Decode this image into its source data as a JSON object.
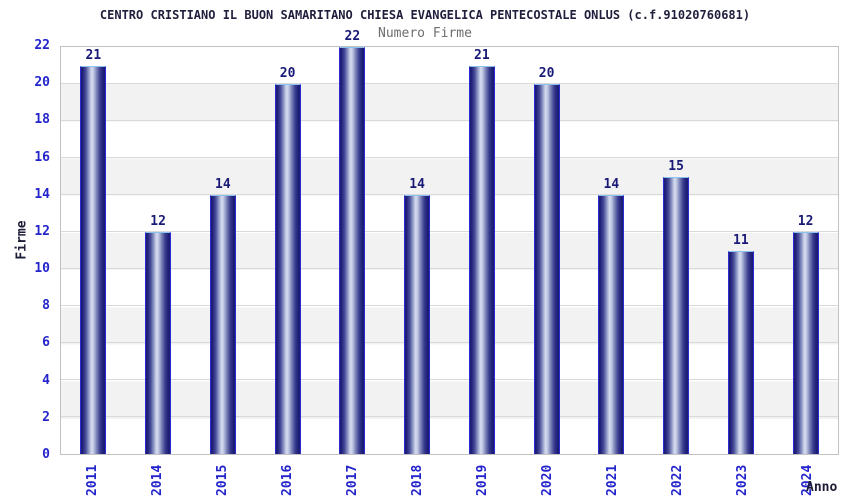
{
  "chart_data": {
    "type": "bar",
    "title": "CENTRO CRISTIANO IL BUON SAMARITANO CHIESA EVANGELICA PENTECOSTALE ONLUS (c.f.91020760681)",
    "subtitle": "Numero Firme",
    "xlabel": "Anno",
    "ylabel": "Firme",
    "categories": [
      "2011",
      "2014",
      "2015",
      "2016",
      "2017",
      "2018",
      "2019",
      "2020",
      "2021",
      "2022",
      "2023",
      "2024"
    ],
    "values": [
      21,
      12,
      14,
      20,
      22,
      14,
      21,
      20,
      14,
      15,
      11,
      12
    ],
    "ylim": [
      0,
      22
    ],
    "yticks": [
      0,
      2,
      4,
      6,
      8,
      10,
      12,
      14,
      16,
      18,
      20,
      22
    ],
    "grid": true,
    "legend_position": "none",
    "colors": {
      "bar_edge": "#1b1b72",
      "bar_highlight": "#d7dcef",
      "bar_border_side": "#2b2bd2",
      "bar_border_top": "#8cc2ee",
      "value_label": "#191977",
      "tick_label": "#2424cc",
      "axis_title": "#1c1c38",
      "title": "#1f1f3d",
      "subtitle": "#6e6e6e",
      "band": "#f3f2f2",
      "gridline": "#d9d9d9",
      "plot_border": "#c2c2c2",
      "background": "#ffffff"
    }
  }
}
